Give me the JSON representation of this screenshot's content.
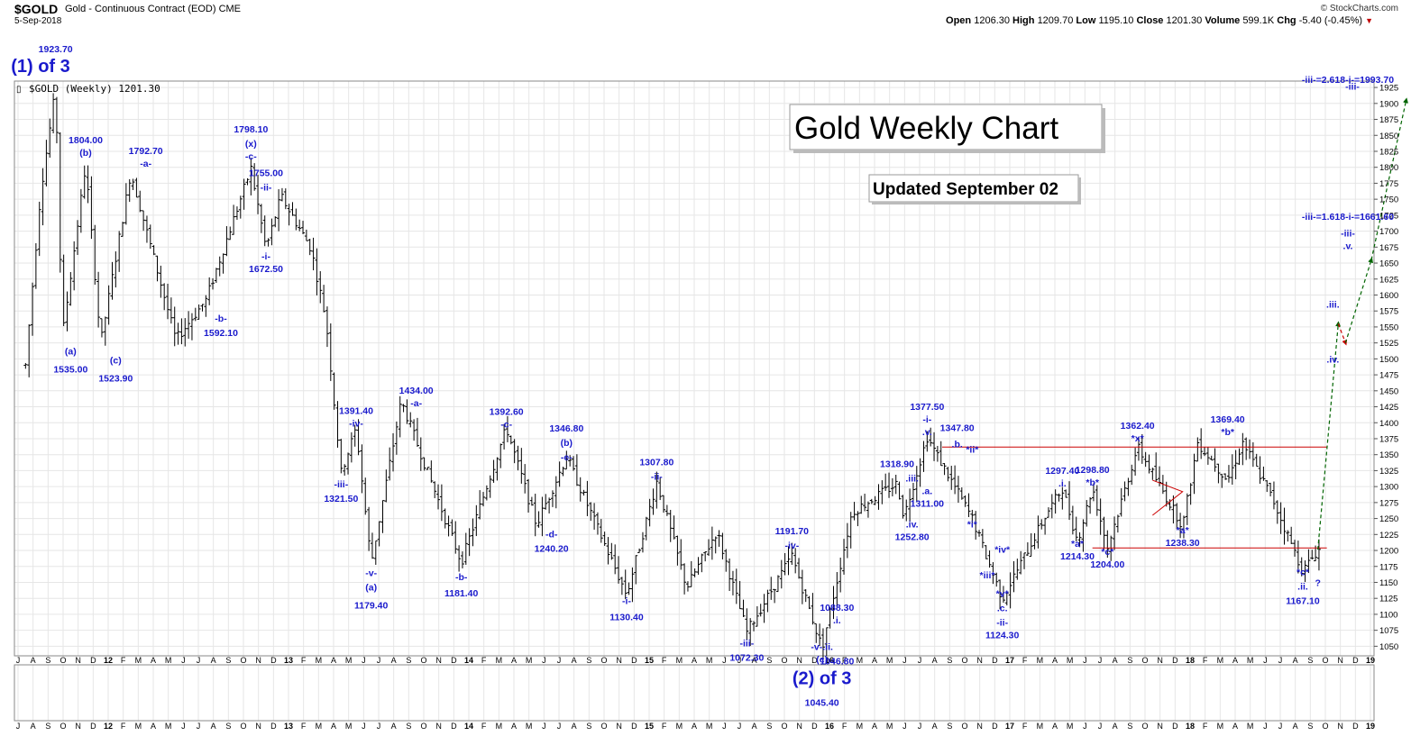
{
  "header": {
    "symbol": "$GOLD",
    "name": "Gold - Continuous Contract (EOD) CME",
    "date": "5-Sep-2018",
    "logo": "© StockCharts.com",
    "open_label": "Open",
    "open": "1206.30",
    "high_label": "High",
    "high": "1209.70",
    "low_label": "Low",
    "low": "1195.10",
    "close_label": "Close",
    "close": "1201.30",
    "volume_label": "Volume",
    "volume": "599.1K",
    "chg_label": "Chg",
    "chg": "-5.40 (-0.45%)",
    "chg_arrow": "▼"
  },
  "legend_text": "$GOLD (Weekly) 1201.30",
  "title_box": "Gold Weekly Chart",
  "updated_box": "Updated September 02",
  "chart_data": {
    "type": "ohlc",
    "title": "Gold Weekly Chart",
    "subtitle": "Updated September 02",
    "ylim": [
      1035,
      1935
    ],
    "y_ticks": [
      1050,
      1075,
      1100,
      1125,
      1150,
      1175,
      1200,
      1225,
      1250,
      1275,
      1300,
      1325,
      1350,
      1375,
      1400,
      1425,
      1450,
      1475,
      1500,
      1525,
      1550,
      1575,
      1600,
      1625,
      1650,
      1675,
      1700,
      1725,
      1750,
      1775,
      1800,
      1825,
      1850,
      1875,
      1900,
      1925
    ],
    "x_labels": [
      "J",
      "A",
      "S",
      "O",
      "N",
      "D",
      "12",
      "F",
      "M",
      "A",
      "M",
      "J",
      "J",
      "A",
      "S",
      "O",
      "N",
      "D",
      "13",
      "F",
      "M",
      "A",
      "M",
      "J",
      "J",
      "A",
      "S",
      "O",
      "N",
      "D",
      "14",
      "F",
      "M",
      "A",
      "M",
      "J",
      "J",
      "A",
      "S",
      "O",
      "N",
      "D",
      "15",
      "F",
      "M",
      "A",
      "M",
      "J",
      "J",
      "A",
      "S",
      "O",
      "N",
      "D",
      "16",
      "F",
      "M",
      "A",
      "M",
      "J",
      "J",
      "A",
      "S",
      "O",
      "N",
      "D",
      "17",
      "F",
      "M",
      "A",
      "M",
      "J",
      "J",
      "A",
      "S",
      "O",
      "N",
      "D",
      "18",
      "F",
      "M",
      "A",
      "M",
      "J",
      "J",
      "A",
      "S",
      "O",
      "N",
      "D",
      "19"
    ],
    "x_start": "2011-07",
    "x_end": "2019-01",
    "price_path": [
      [
        "2011-07",
        1490
      ],
      [
        "2011-08",
        1760
      ],
      [
        "2011-09",
        1923.7
      ],
      [
        "2011-09",
        1535
      ],
      [
        "2011-11",
        1804
      ],
      [
        "2011-12",
        1523.9
      ],
      [
        "2012-02",
        1792.7
      ],
      [
        "2012-05",
        1530
      ],
      [
        "2012-07",
        1592.1
      ],
      [
        "2012-10",
        1798.1
      ],
      [
        "2012-11",
        1672.5
      ],
      [
        "2012-12",
        1755
      ],
      [
        "2013-02",
        1672.5
      ],
      [
        "2013-03",
        1560
      ],
      [
        "2013-04",
        1321.5
      ],
      [
        "2013-05",
        1391.4
      ],
      [
        "2013-06",
        1179.4
      ],
      [
        "2013-08",
        1434
      ],
      [
        "2013-12",
        1181.4
      ],
      [
        "2014-03",
        1392.6
      ],
      [
        "2014-05",
        1240.2
      ],
      [
        "2014-07",
        1346.8
      ],
      [
        "2014-11",
        1130.4
      ],
      [
        "2015-01",
        1307.8
      ],
      [
        "2015-03",
        1142
      ],
      [
        "2015-05",
        1230
      ],
      [
        "2015-07",
        1072.3
      ],
      [
        "2015-10",
        1191.7
      ],
      [
        "2015-12",
        1046.8
      ],
      [
        "2016-02",
        1260
      ],
      [
        "2016-05",
        1305
      ],
      [
        "2016-05",
        1252.8
      ],
      [
        "2016-07",
        1377.5
      ],
      [
        "2016-10",
        1250
      ],
      [
        "2016-12",
        1124.3
      ],
      [
        "2017-03",
        1260
      ],
      [
        "2017-04",
        1297.4
      ],
      [
        "2017-05",
        1214.3
      ],
      [
        "2017-06",
        1298.8
      ],
      [
        "2017-07",
        1204
      ],
      [
        "2017-09",
        1362.4
      ],
      [
        "2017-12",
        1238.3
      ],
      [
        "2018-01",
        1369.4
      ],
      [
        "2018-03",
        1310
      ],
      [
        "2018-04",
        1369.4
      ],
      [
        "2018-06",
        1280
      ],
      [
        "2018-08",
        1167.1
      ],
      [
        "2018-09",
        1201.3
      ]
    ],
    "lines": [
      {
        "from": [
          "2016-08",
          1362
        ],
        "to": [
          "2018-09",
          1362
        ],
        "color": "#cc0000"
      },
      {
        "from": [
          "2017-06",
          1204
        ],
        "to": [
          "2018-09",
          1204
        ],
        "color": "#cc0000"
      }
    ],
    "projection": [
      {
        "from": [
          "2018-09",
          1201.3
        ],
        "to": [
          "2018-10",
          1555
        ],
        "color": "#006400",
        "style": "dashed"
      },
      {
        "from": [
          "2018-10",
          1555
        ],
        "to": [
          "2018-10",
          1525
        ],
        "color": "#cc0000",
        "style": "dashed"
      },
      {
        "from": [
          "2018-10",
          1525
        ],
        "to": [
          "2018-11",
          1655
        ],
        "color": "#006400",
        "style": "dashed"
      },
      {
        "from": [
          "2018-11",
          1655
        ],
        "to": [
          "2018-12",
          1905
        ],
        "color": "#006400",
        "style": "dashed"
      }
    ],
    "annotations": [
      {
        "x": "2011-09",
        "y": 1923.7,
        "text": "1923.70",
        "dy": -40
      },
      {
        "x": "2011-08",
        "y": 1923.7,
        "text": "(1) of 3",
        "dy": -18,
        "big": true
      },
      {
        "x": "2011-11",
        "y": 1804,
        "text": "1804.00",
        "dy": -24
      },
      {
        "x": "2011-11",
        "y": 1804,
        "text": "(b)",
        "dy": -10
      },
      {
        "x": "2011-10",
        "y": 1535,
        "text": "(a)",
        "dy": 20
      },
      {
        "x": "2011-10",
        "y": 1535,
        "text": "1535.00",
        "dy": 40
      },
      {
        "x": "2012-01",
        "y": 1523.9,
        "text": "(c)",
        "dy": 22
      },
      {
        "x": "2012-01",
        "y": 1523.9,
        "text": "1523.90",
        "dy": 42
      },
      {
        "x": "2012-03",
        "y": 1792.7,
        "text": "1792.70",
        "dy": -20
      },
      {
        "x": "2012-03",
        "y": 1792.7,
        "text": "-a-",
        "dy": -6
      },
      {
        "x": "2012-10",
        "y": 1798.1,
        "text": "1798.10",
        "dy": -40
      },
      {
        "x": "2012-10",
        "y": 1798.1,
        "text": "(x)",
        "dy": -24
      },
      {
        "x": "2012-10",
        "y": 1798.1,
        "text": "-c-",
        "dy": -10
      },
      {
        "x": "2012-11",
        "y": 1755,
        "text": "1755.00",
        "dy": -22
      },
      {
        "x": "2012-11",
        "y": 1755,
        "text": "-ii-",
        "dy": -6
      },
      {
        "x": "2012-11",
        "y": 1672.5,
        "text": "-i-",
        "dy": 12
      },
      {
        "x": "2012-11",
        "y": 1672.5,
        "text": "1672.50",
        "dy": 26
      },
      {
        "x": "2012-08",
        "y": 1592.1,
        "text": "-b-",
        "dy": 24
      },
      {
        "x": "2012-08",
        "y": 1592.1,
        "text": "1592.10",
        "dy": 40
      },
      {
        "x": "2013-04",
        "y": 1321.5,
        "text": "-iii-",
        "dy": 16
      },
      {
        "x": "2013-04",
        "y": 1321.5,
        "text": "1321.50",
        "dy": 32
      },
      {
        "x": "2013-05",
        "y": 1391.4,
        "text": "1391.40",
        "dy": -16
      },
      {
        "x": "2013-05",
        "y": 1391.4,
        "text": "-iv-",
        "dy": -2
      },
      {
        "x": "2013-06",
        "y": 1179.4,
        "text": "-v-",
        "dy": 14
      },
      {
        "x": "2013-06",
        "y": 1179.4,
        "text": "(a)",
        "dy": 30
      },
      {
        "x": "2013-06",
        "y": 1179.4,
        "text": "1179.40",
        "dy": 50
      },
      {
        "x": "2013-09",
        "y": 1434,
        "text": "1434.00",
        "dy": -8
      },
      {
        "x": "2013-09",
        "y": 1434,
        "text": "-a-",
        "dy": 6
      },
      {
        "x": "2013-12",
        "y": 1181.4,
        "text": "-b-",
        "dy": 20
      },
      {
        "x": "2013-12",
        "y": 1181.4,
        "text": "1181.40",
        "dy": 38
      },
      {
        "x": "2014-03",
        "y": 1392.6,
        "text": "1392.60",
        "dy": -14
      },
      {
        "x": "2014-03",
        "y": 1392.6,
        "text": "-c-",
        "dy": 0
      },
      {
        "x": "2014-07",
        "y": 1346.8,
        "text": "1346.80",
        "dy": -28
      },
      {
        "x": "2014-07",
        "y": 1346.8,
        "text": "(b)",
        "dy": -12
      },
      {
        "x": "2014-07",
        "y": 1346.8,
        "text": "-e-",
        "dy": 4
      },
      {
        "x": "2014-06",
        "y": 1240.2,
        "text": "-d-",
        "dy": 14
      },
      {
        "x": "2014-06",
        "y": 1240.2,
        "text": "1240.20",
        "dy": 30
      },
      {
        "x": "2014-11",
        "y": 1130.4,
        "text": "-i-",
        "dy": 10
      },
      {
        "x": "2014-11",
        "y": 1130.4,
        "text": "1130.40",
        "dy": 28
      },
      {
        "x": "2015-01",
        "y": 1307.8,
        "text": "1307.80",
        "dy": -18
      },
      {
        "x": "2015-01",
        "y": 1307.8,
        "text": "-ii-",
        "dy": -2
      },
      {
        "x": "2015-07",
        "y": 1072.3,
        "text": "-iii-",
        "dy": 16
      },
      {
        "x": "2015-07",
        "y": 1072.3,
        "text": "1072.30",
        "dy": 32
      },
      {
        "x": "2015-10",
        "y": 1191.7,
        "text": "1191.70",
        "dy": -24
      },
      {
        "x": "2015-10",
        "y": 1191.7,
        "text": "-iv-",
        "dy": -8
      },
      {
        "x": "2016-01",
        "y": 1088.3,
        "text": "1088.30",
        "dy": -12
      },
      {
        "x": "2016-01",
        "y": 1088.3,
        "text": ".i.",
        "dy": 2
      },
      {
        "x": "2015-12",
        "y": 1046.8,
        "text": "-v-.ii.",
        "dy": 2
      },
      {
        "x": "2015-12",
        "y": 1046.8,
        "text": "(c)",
        "dy": 16
      },
      {
        "x": "2016-01",
        "y": 1046.8,
        "text": "1046.80",
        "dy": 18
      },
      {
        "x": "2015-12",
        "y": 1046.8,
        "text": "(2) of 3",
        "dy": 40,
        "big": true
      },
      {
        "x": "2015-12",
        "y": 1046.8,
        "text": "1045.40",
        "dy": 64
      },
      {
        "x": "2016-07",
        "y": 1377.5,
        "text": "1377.50",
        "dy": -30
      },
      {
        "x": "2016-07",
        "y": 1377.5,
        "text": "-i-",
        "dy": -16
      },
      {
        "x": "2016-07",
        "y": 1377.5,
        "text": ".v.",
        "dy": -2
      },
      {
        "x": "2016-05",
        "y": 1318.9,
        "text": "1318.90",
        "dy": -8
      },
      {
        "x": "2016-06",
        "y": 1318.9,
        "text": ".iii.",
        "dy": 8
      },
      {
        "x": "2016-07",
        "y": 1311,
        "text": ".a.",
        "dy": 16
      },
      {
        "x": "2016-07",
        "y": 1311,
        "text": "1311.00",
        "dy": 30
      },
      {
        "x": "2016-06",
        "y": 1252.8,
        "text": ".iv.",
        "dy": 12
      },
      {
        "x": "2016-06",
        "y": 1252.8,
        "text": "1252.80",
        "dy": 26
      },
      {
        "x": "2016-09",
        "y": 1347.8,
        "text": "1347.80",
        "dy": -28
      },
      {
        "x": "2016-09",
        "y": 1347.8,
        "text": ".b.",
        "dy": -10
      },
      {
        "x": "2016-10",
        "y": 1350,
        "text": "*ii*",
        "dy": -2
      },
      {
        "x": "2016-10",
        "y": 1250,
        "text": "*i*",
        "dy": 10
      },
      {
        "x": "2016-12",
        "y": 1205,
        "text": "*iv*",
        "dy": 6
      },
      {
        "x": "2016-11",
        "y": 1165,
        "text": "*iii*",
        "dy": 6
      },
      {
        "x": "2016-12",
        "y": 1124.3,
        "text": "*v*",
        "dy": -2
      },
      {
        "x": "2016-12",
        "y": 1124.3,
        "text": ".c.",
        "dy": 14
      },
      {
        "x": "2016-12",
        "y": 1124.3,
        "text": "-ii-",
        "dy": 30
      },
      {
        "x": "2016-12",
        "y": 1124.3,
        "text": "1124.30",
        "dy": 44
      },
      {
        "x": "2017-04",
        "y": 1297.4,
        "text": "1297.40",
        "dy": -16
      },
      {
        "x": "2017-04",
        "y": 1297.4,
        "text": ".i.",
        "dy": -2
      },
      {
        "x": "2017-06",
        "y": 1298.8,
        "text": "1298.80",
        "dy": -16
      },
      {
        "x": "2017-06",
        "y": 1298.8,
        "text": "*b*",
        "dy": -2
      },
      {
        "x": "2017-05",
        "y": 1214.3,
        "text": "*a*",
        "dy": 6
      },
      {
        "x": "2017-05",
        "y": 1214.3,
        "text": "1214.30",
        "dy": 20
      },
      {
        "x": "2017-07",
        "y": 1204,
        "text": "*c*",
        "dy": 8
      },
      {
        "x": "2017-07",
        "y": 1204,
        "text": "1204.00",
        "dy": 22
      },
      {
        "x": "2017-09",
        "y": 1362.4,
        "text": "1362.40",
        "dy": -20
      },
      {
        "x": "2017-09",
        "y": 1362.4,
        "text": "*x*",
        "dy": -6
      },
      {
        "x": "2017-12",
        "y": 1238.3,
        "text": "*a*",
        "dy": 8
      },
      {
        "x": "2017-12",
        "y": 1238.3,
        "text": "1238.30",
        "dy": 22
      },
      {
        "x": "2018-03",
        "y": 1369.4,
        "text": "1369.40",
        "dy": -22
      },
      {
        "x": "2018-03",
        "y": 1369.4,
        "text": "*b*",
        "dy": -8
      },
      {
        "x": "2018-08",
        "y": 1167.1,
        "text": "*c*",
        "dy": 4
      },
      {
        "x": "2018-08",
        "y": 1167.1,
        "text": ".ii.",
        "dy": 20
      },
      {
        "x": "2018-09",
        "y": 1167.1,
        "text": "?",
        "dy": 16
      },
      {
        "x": "2018-08",
        "y": 1167.1,
        "text": "1167.10",
        "dy": 36
      },
      {
        "x": "2018-10",
        "y": 1555,
        "text": ".iii.",
        "dy": -18
      },
      {
        "x": "2018-10",
        "y": 1525,
        "text": ".iv.",
        "dy": 22
      },
      {
        "x": "2018-11",
        "y": 1655,
        "text": ".v.",
        "dy": -12
      },
      {
        "x": "2018-11",
        "y": 1655,
        "text": "-iii-",
        "dy": -26
      },
      {
        "x": "2018-11",
        "y": 1661.6,
        "text": "-iii-=1.618-i-=1661.60",
        "dy": -40
      },
      {
        "x": "2018-12",
        "y": 1905,
        "text": "-iii-",
        "dy": -12
      },
      {
        "x": "2018-11",
        "y": 1993.7,
        "text": "-iii-=2.618-i-=1993.70",
        "dy": 10
      }
    ]
  },
  "colors": {
    "label": "#1a1acc",
    "bars": "#000000",
    "grid": "#e6e6e6",
    "resistance": "#cc0000",
    "projection_up": "#006400",
    "projection_down": "#cc0000"
  }
}
